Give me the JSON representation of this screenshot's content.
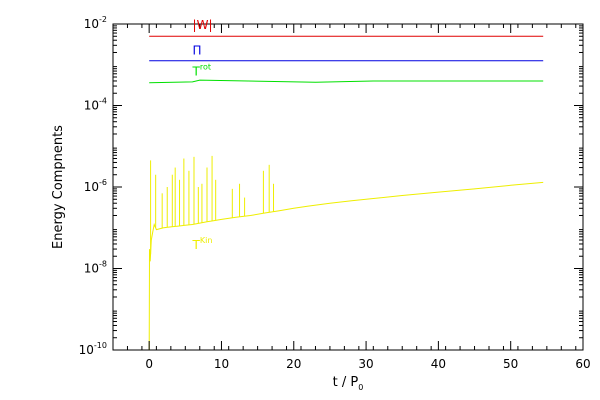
{
  "chart_data": {
    "type": "line",
    "xlabel": "t / P",
    "xlabel_subscript": "0",
    "ylabel": "Energy Compnents",
    "xlim": [
      -5,
      60
    ],
    "ylim": [
      1e-10,
      0.01
    ],
    "yscale": "log",
    "xticks": [
      0,
      10,
      20,
      30,
      40,
      50,
      60
    ],
    "yticks": [
      {
        "value": 1e-10,
        "mantissa": "10",
        "exp": "-10"
      },
      {
        "value": 1e-08,
        "mantissa": "10",
        "exp": "-8"
      },
      {
        "value": 1e-06,
        "mantissa": "10",
        "exp": "-6"
      },
      {
        "value": 0.0001,
        "mantissa": "10",
        "exp": "-4"
      },
      {
        "value": 0.01,
        "mantissa": "10",
        "exp": "-2"
      }
    ],
    "grid": false,
    "series": [
      {
        "name": "|W|",
        "color": "#e00000",
        "x": [
          0,
          54.5
        ],
        "y": [
          0.005,
          0.005
        ],
        "label_pos": {
          "x": 6,
          "y": 0.0075
        }
      },
      {
        "name": "Π",
        "color": "#0000e0",
        "x": [
          0,
          54.5
        ],
        "y": [
          0.00125,
          0.00125
        ],
        "label_pos": {
          "x": 6,
          "y": 0.0018
        }
      },
      {
        "name": "T",
        "superscript": "rot",
        "color": "#00e000",
        "x": [
          0,
          6,
          7,
          23,
          31,
          54.5
        ],
        "y": [
          0.00036,
          0.00038,
          0.00042,
          0.00037,
          0.0004,
          0.0004
        ],
        "label_pos": {
          "x": 6,
          "y": 0.00055
        }
      },
      {
        "name": "T",
        "superscript": "Kin",
        "color": "#eeee00",
        "x": [
          0,
          0.05,
          0.15,
          0.3,
          0.5,
          0.7,
          1,
          2,
          3,
          4,
          5,
          6,
          7,
          8,
          9,
          10,
          12,
          14,
          16,
          18,
          20,
          22,
          25,
          28,
          30,
          35,
          40,
          45,
          50,
          54.5
        ],
        "y": [
          1e-10,
          3e-08,
          1.5e-08,
          5e-08,
          8e-08,
          1.2e-07,
          9e-08,
          1e-07,
          1.05e-07,
          1.1e-07,
          1.15e-07,
          1.2e-07,
          1.3e-07,
          1.4e-07,
          1.5e-07,
          1.6e-07,
          1.8e-07,
          2e-07,
          2.3e-07,
          2.6e-07,
          3e-07,
          3.4e-07,
          4e-07,
          4.6e-07,
          5e-07,
          6.2e-07,
          7.5e-07,
          9e-07,
          1.1e-06,
          1.3e-06
        ],
        "spikes": [
          {
            "x": 0.2,
            "y": 4.5e-06
          },
          {
            "x": 0.9,
            "y": 2e-06
          },
          {
            "x": 1.8,
            "y": 7e-07
          },
          {
            "x": 2.5,
            "y": 1e-06
          },
          {
            "x": 3.2,
            "y": 2e-06
          },
          {
            "x": 3.6,
            "y": 3e-06
          },
          {
            "x": 4.2,
            "y": 1.5e-06
          },
          {
            "x": 4.8,
            "y": 5e-06
          },
          {
            "x": 5.5,
            "y": 2.5e-06
          },
          {
            "x": 6.2,
            "y": 5.5e-06
          },
          {
            "x": 6.8,
            "y": 1e-06
          },
          {
            "x": 7.3,
            "y": 1.2e-06
          },
          {
            "x": 8.0,
            "y": 3e-06
          },
          {
            "x": 8.7,
            "y": 5.8e-06
          },
          {
            "x": 9.2,
            "y": 1.5e-06
          },
          {
            "x": 11.5,
            "y": 9e-07
          },
          {
            "x": 12.5,
            "y": 1.2e-06
          },
          {
            "x": 13.2,
            "y": 5.5e-07
          },
          {
            "x": 15.8,
            "y": 2.5e-06
          },
          {
            "x": 16.6,
            "y": 3.5e-06
          },
          {
            "x": 17.2,
            "y": 1.2e-06
          }
        ],
        "label_pos": {
          "x": 6,
          "y": 3e-08
        }
      }
    ]
  }
}
